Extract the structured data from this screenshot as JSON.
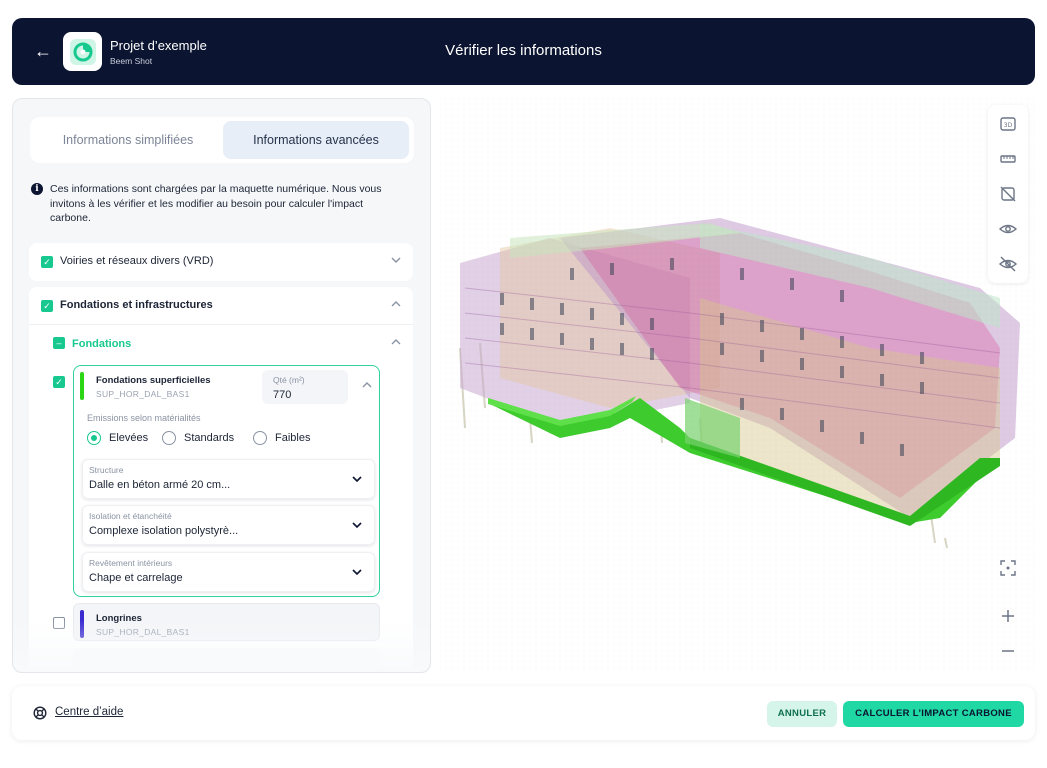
{
  "header": {
    "project_name": "Projet d’exemple",
    "project_sub": "Beem Shot",
    "title": "Vérifier les informations",
    "back_icon": "arrow-left-icon"
  },
  "tabs": [
    {
      "label": "Informations simplifiées",
      "active": false
    },
    {
      "label": "Informations avancées",
      "active": true
    }
  ],
  "info_text": "Ces informations sont chargées par la maquette numérique. Nous vous invitons à les vérifier et les modifier au besoin pour calculer l'impact carbone.",
  "sections": {
    "vrd": {
      "label": "Voiries et réseaux divers (VRD)",
      "checked": true
    },
    "fondations_infra": {
      "label": "Fondations et infrastructures",
      "checked": true
    },
    "fondations": {
      "label": "Fondations"
    }
  },
  "card": {
    "title": "Fondations superficielles",
    "code": "SUP_HOR_DAL_BAS1",
    "qty_label": "Qté (m²)",
    "qty_value": "770",
    "bar_color": "#2bd615",
    "emissions_label": "Emissions selon matérialités",
    "radios": [
      {
        "label": "Elevées",
        "selected": true
      },
      {
        "label": "Standards",
        "selected": false
      },
      {
        "label": "Faibles",
        "selected": false
      }
    ],
    "selects": [
      {
        "label": "Structure",
        "value": "Dalle en béton armé 20 cm..."
      },
      {
        "label": "Isolation et étanchéité",
        "value": "Complexe isolation polystyrè..."
      },
      {
        "label": "Revêtement intérieurs",
        "value": "Chape et carrelage"
      }
    ]
  },
  "row2": {
    "title": "Longrines",
    "code": "SUP_HOR_DAL_BAS1",
    "bar_color": "#3a2bd0"
  },
  "viewer_tools": [
    "view-3d-icon",
    "ruler-icon",
    "hide-selection-icon",
    "eye-icon",
    "eye-off-icon"
  ],
  "zoom_tools": [
    "fit-screen-icon",
    "zoom-in-icon",
    "zoom-out-icon"
  ],
  "footer": {
    "help_label": "Centre d’aide",
    "cancel_label": "ANNULER",
    "calc_label": "CALCULER L’IMPACT CARBONE"
  },
  "colors": {
    "accent": "#1fd8a3",
    "navy": "#0b1430"
  }
}
